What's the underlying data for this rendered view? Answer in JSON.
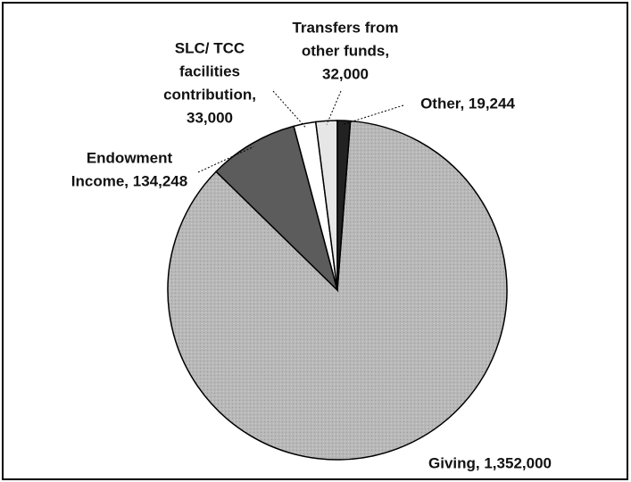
{
  "chart_data": {
    "type": "pie",
    "values": [
      1352000,
      134248,
      33000,
      32000,
      19244
    ],
    "value_labels": [
      [
        "Giving, 1,352,000"
      ],
      [
        "Endowment",
        "Income, 134,248"
      ],
      [
        "SLC/ TCC",
        "facilities",
        "contribution,",
        "33,000"
      ],
      [
        "Transfers from",
        "other funds,",
        "32,000"
      ],
      [
        "Other, 19,244"
      ]
    ],
    "colors": [
      "#b8b8b8",
      "#5c5c5c",
      "#ffffff",
      "#e6e6e6",
      "#222222"
    ]
  }
}
